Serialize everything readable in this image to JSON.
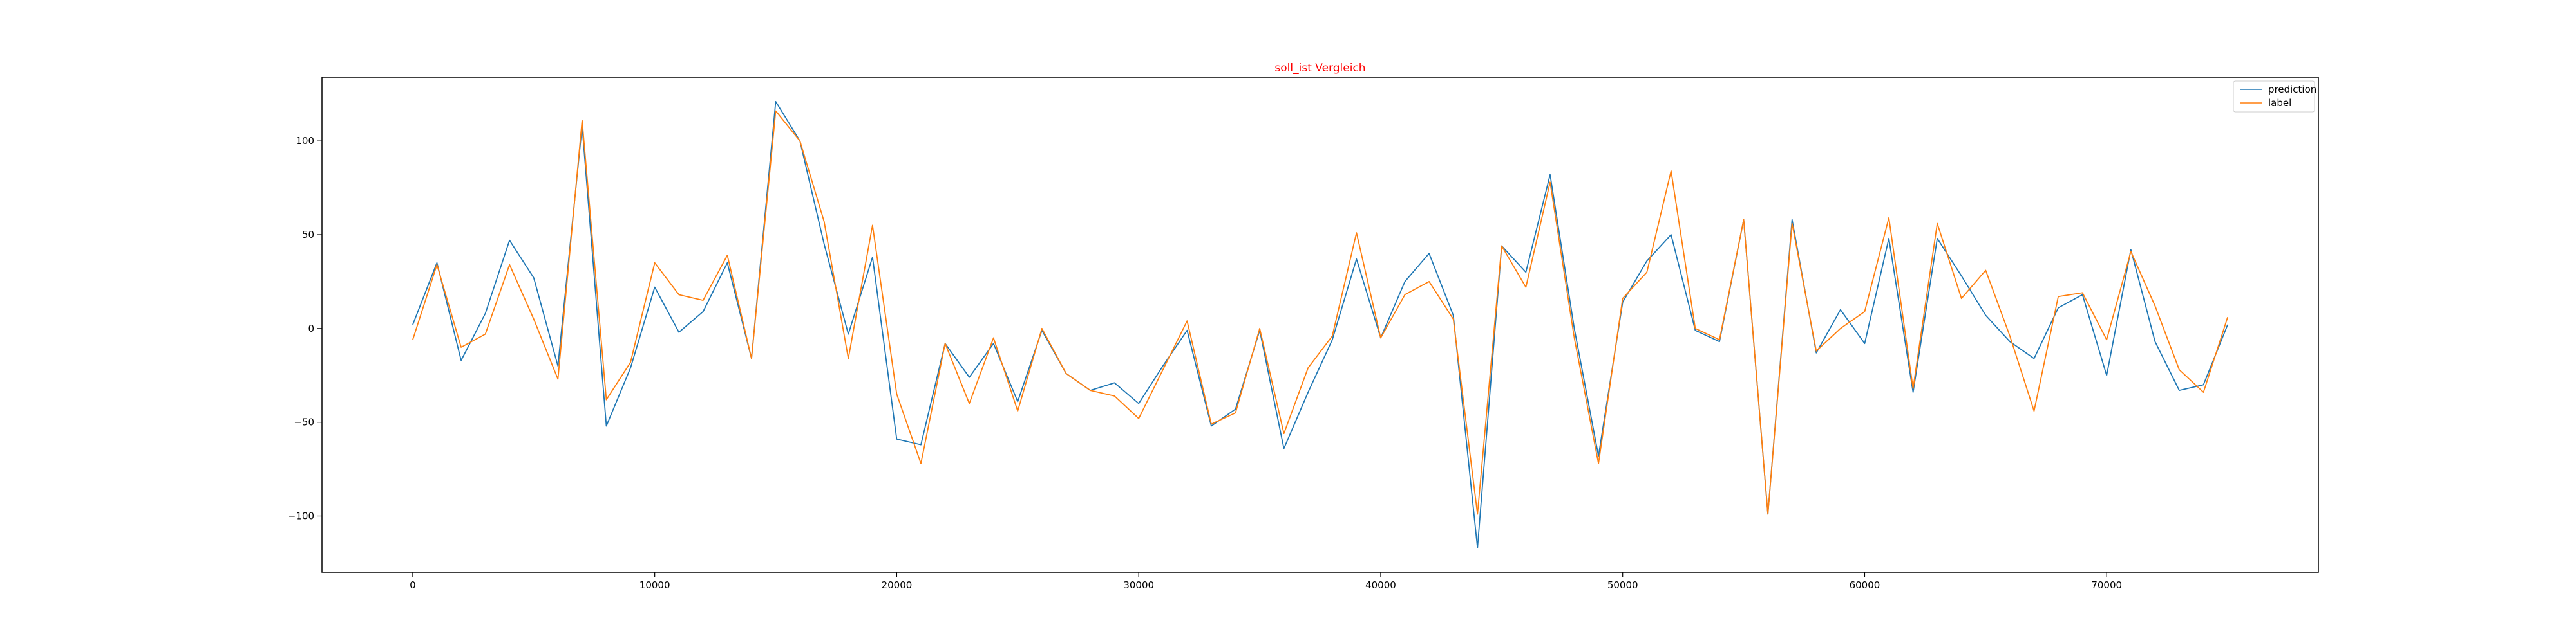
{
  "chart_data": {
    "type": "line",
    "title": "soll_ist Vergleich",
    "title_color": "#ff0000",
    "xlabel": "",
    "ylabel": "",
    "xlim": [
      -3750,
      78750
    ],
    "ylim": [
      -130,
      134
    ],
    "xticks": [
      0,
      10000,
      20000,
      30000,
      40000,
      50000,
      60000,
      70000
    ],
    "yticks": [
      -100,
      -50,
      0,
      50,
      100
    ],
    "grid": false,
    "legend_position": "top-right",
    "x": [
      0,
      1000,
      2000,
      3000,
      4000,
      5000,
      6000,
      7000,
      8000,
      9000,
      10000,
      11000,
      12000,
      13000,
      14000,
      15000,
      16000,
      17000,
      18000,
      19000,
      20000,
      21000,
      22000,
      23000,
      24000,
      25000,
      26000,
      27000,
      28000,
      29000,
      30000,
      31000,
      32000,
      33000,
      34000,
      35000,
      36000,
      37000,
      38000,
      39000,
      40000,
      41000,
      42000,
      43000,
      44000,
      45000,
      46000,
      47000,
      48000,
      49000,
      50000,
      51000,
      52000,
      53000,
      54000,
      55000,
      56000,
      57000,
      58000,
      59000,
      60000,
      61000,
      62000,
      63000,
      64000,
      65000,
      66000,
      67000,
      68000,
      69000,
      70000,
      71000,
      72000,
      73000,
      74000,
      75000
    ],
    "series": [
      {
        "name": "prediction",
        "color": "#1f77b4",
        "values": [
          2,
          35,
          -17,
          8,
          47,
          27,
          -20,
          108,
          -52,
          -21,
          22,
          -2,
          9,
          35,
          -16,
          121,
          100,
          45,
          -3,
          38,
          -59,
          -62,
          -8,
          -26,
          -8,
          -39,
          -1,
          -24,
          -33,
          -29,
          -40,
          -20,
          -1,
          -52,
          -43,
          -1,
          -64,
          -34,
          -6,
          37,
          -5,
          25,
          40,
          7,
          -117,
          44,
          30,
          82,
          0,
          -68,
          14,
          36,
          50,
          -1,
          -7,
          58,
          -99,
          58,
          -13,
          10,
          -8,
          48,
          -34,
          48,
          28,
          7,
          -7,
          -16,
          11,
          18,
          -25,
          42,
          -7,
          -33,
          -30,
          2
        ]
      },
      {
        "name": "label",
        "color": "#ff7f0e",
        "values": [
          -6,
          34,
          -10,
          -3,
          34,
          5,
          -27,
          111,
          -38,
          -18,
          35,
          18,
          15,
          39,
          -16,
          116,
          100,
          57,
          -16,
          55,
          -35,
          -72,
          -8,
          -40,
          -5,
          -44,
          0,
          -24,
          -33,
          -36,
          -48,
          -22,
          4,
          -51,
          -45,
          0,
          -56,
          -21,
          -4,
          51,
          -5,
          18,
          25,
          5,
          -99,
          44,
          22,
          78,
          -5,
          -72,
          16,
          30,
          84,
          0,
          -6,
          58,
          -99,
          56,
          -12,
          0,
          9,
          59,
          -32,
          56,
          16,
          31,
          -4,
          -44,
          17,
          19,
          -6,
          41,
          12,
          -22,
          -34,
          6
        ]
      }
    ]
  }
}
